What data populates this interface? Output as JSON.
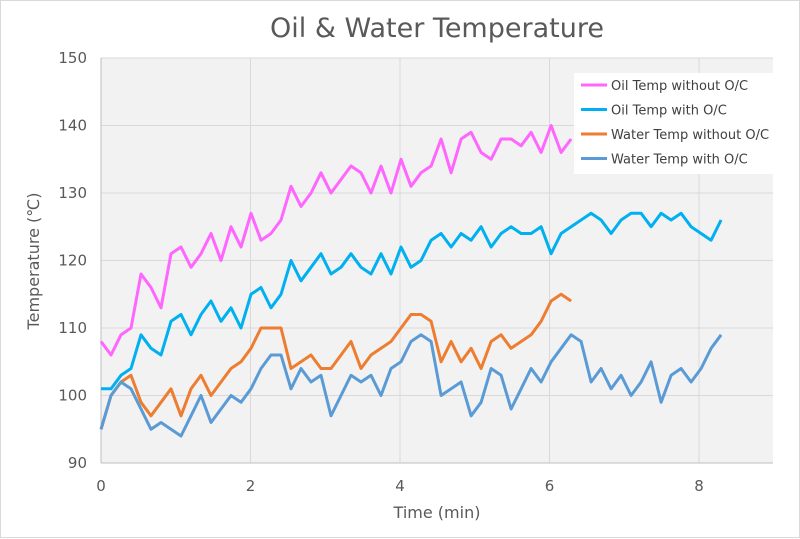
{
  "chart_data": {
    "type": "line",
    "title": "Oil & Water Temperature",
    "xlabel": "Time (min)",
    "ylabel": "Temperature (℃)",
    "xlim": [
      0,
      9
    ],
    "ylim": [
      90,
      150
    ],
    "xticks": [
      0,
      2,
      4,
      6,
      8
    ],
    "yticks": [
      90,
      100,
      110,
      120,
      130,
      140,
      150
    ],
    "grid": true,
    "legend_position": "top-right",
    "x_start": 0,
    "x_step": 0.1338,
    "series": [
      {
        "name": "Oil Temp without O/C",
        "color": "#ff66ff",
        "values": [
          108,
          106,
          109,
          110,
          118,
          116,
          113,
          121,
          122,
          119,
          121,
          124,
          120,
          125,
          122,
          127,
          123,
          124,
          126,
          131,
          128,
          130,
          133,
          130,
          132,
          134,
          133,
          130,
          134,
          130,
          135,
          131,
          133,
          134,
          138,
          133,
          138,
          139,
          136,
          135,
          138,
          138,
          137,
          139,
          136,
          140,
          136,
          138
        ]
      },
      {
        "name": "Oil Temp with O/C",
        "color": "#00b0f0",
        "values": [
          101,
          101,
          103,
          104,
          109,
          107,
          106,
          111,
          112,
          109,
          112,
          114,
          111,
          113,
          110,
          115,
          116,
          113,
          115,
          120,
          117,
          119,
          121,
          118,
          119,
          121,
          119,
          118,
          121,
          118,
          122,
          119,
          120,
          123,
          124,
          122,
          124,
          123,
          125,
          122,
          124,
          125,
          124,
          124,
          125,
          121,
          124,
          125,
          126,
          127,
          126,
          124,
          126,
          127,
          127,
          125,
          127,
          126,
          127,
          125,
          124,
          123,
          126
        ]
      },
      {
        "name": "Water Temp without O/C",
        "color": "#ed7d31",
        "values": [
          95,
          100,
          102,
          103,
          99,
          97,
          99,
          101,
          97,
          101,
          103,
          100,
          102,
          104,
          105,
          107,
          110,
          110,
          110,
          104,
          105,
          106,
          104,
          104,
          106,
          108,
          104,
          106,
          107,
          108,
          110,
          112,
          112,
          111,
          105,
          108,
          105,
          107,
          104,
          108,
          109,
          107,
          108,
          109,
          111,
          114,
          115,
          114
        ]
      },
      {
        "name": "Water Temp with O/C",
        "color": "#5b9bd5",
        "values": [
          95,
          100,
          102,
          101,
          98,
          95,
          96,
          95,
          94,
          97,
          100,
          96,
          98,
          100,
          99,
          101,
          104,
          106,
          106,
          101,
          104,
          102,
          103,
          97,
          100,
          103,
          102,
          103,
          100,
          104,
          105,
          108,
          109,
          108,
          100,
          101,
          102,
          97,
          99,
          104,
          103,
          98,
          101,
          104,
          102,
          105,
          107,
          109,
          108,
          102,
          104,
          101,
          103,
          100,
          102,
          105,
          99,
          103,
          104,
          102,
          104,
          107,
          109
        ]
      }
    ]
  }
}
